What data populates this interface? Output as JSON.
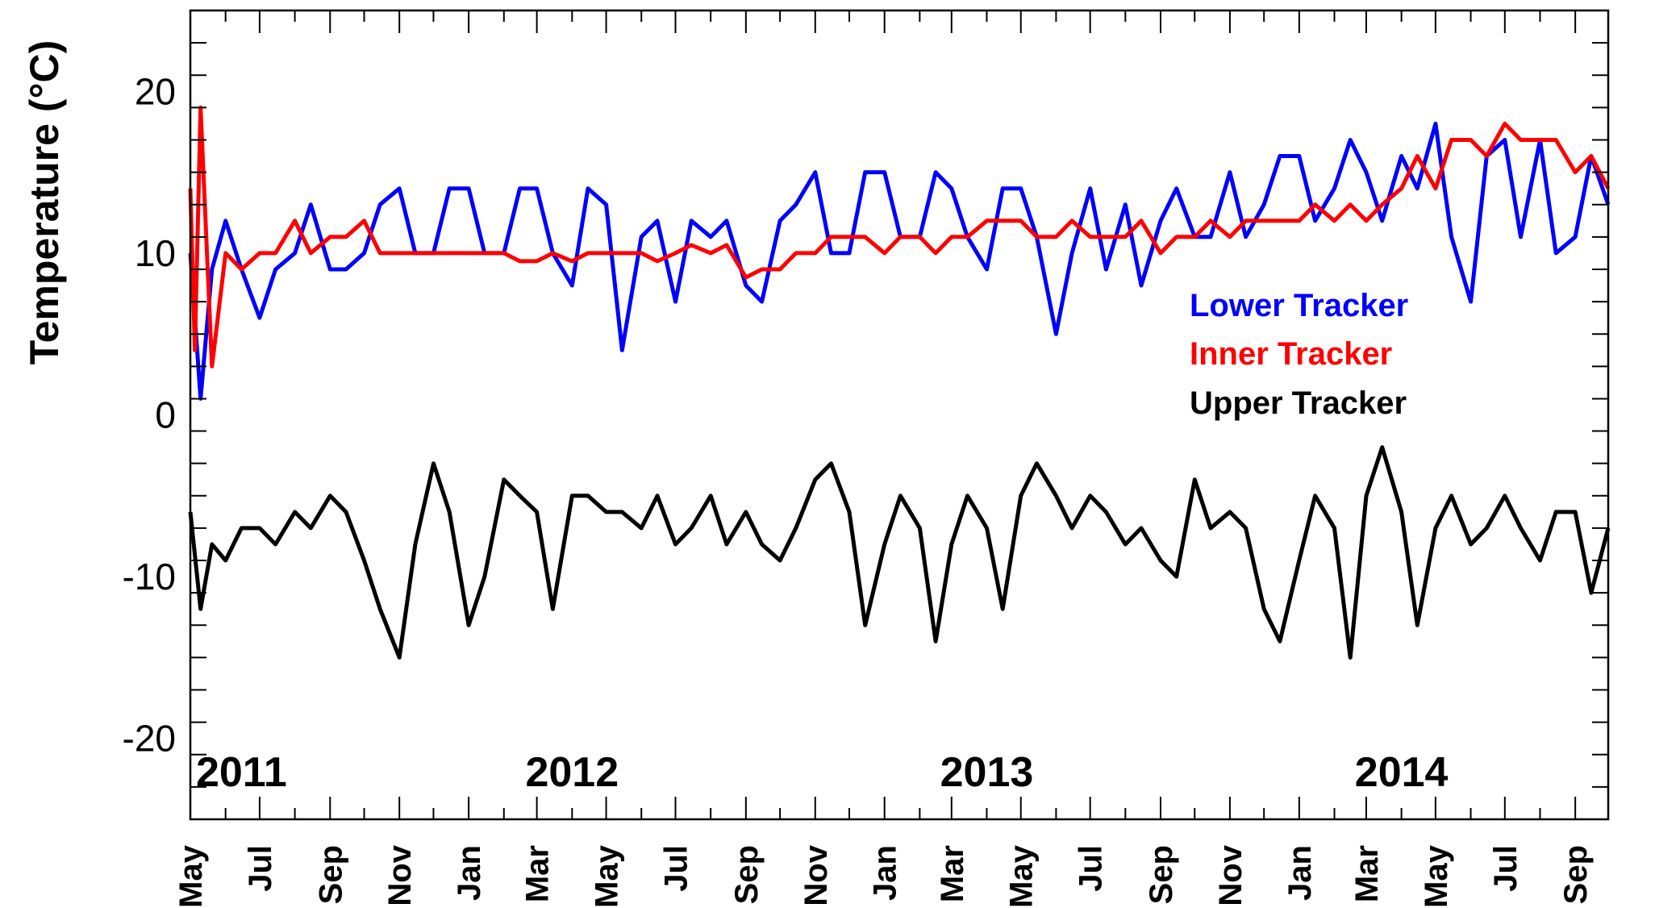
{
  "chart_data": {
    "type": "line",
    "ylabel": "Temperature (°C)",
    "xlabel": "",
    "ylim": [
      -25,
      25
    ],
    "yticks": [
      -20,
      -10,
      0,
      10,
      20
    ],
    "x_range": [
      "2011-05-01",
      "2014-09-30"
    ],
    "x_month_labels": [
      "May",
      "Jul",
      "Sep",
      "Nov",
      "Jan",
      "Mar",
      "May",
      "Jul",
      "Sep",
      "Nov",
      "Jan",
      "Mar",
      "May",
      "Jul",
      "Sep",
      "Nov",
      "Jan",
      "Mar",
      "May",
      "Jul",
      "Sep"
    ],
    "x_month_dates": [
      "2011-05-01",
      "2011-07-01",
      "2011-09-01",
      "2011-11-01",
      "2012-01-01",
      "2012-03-01",
      "2012-05-01",
      "2012-07-01",
      "2012-09-01",
      "2012-11-01",
      "2013-01-01",
      "2013-03-01",
      "2013-05-01",
      "2013-07-01",
      "2013-09-01",
      "2013-11-01",
      "2014-01-01",
      "2014-03-01",
      "2014-05-01",
      "2014-07-01",
      "2014-09-01"
    ],
    "year_annotations": [
      {
        "label": "2011",
        "date": "2011-06-15"
      },
      {
        "label": "2012",
        "date": "2012-04-01"
      },
      {
        "label": "2013",
        "date": "2013-04-01"
      },
      {
        "label": "2014",
        "date": "2014-04-01"
      }
    ],
    "legend_position": "right-middle",
    "grid": false,
    "series": [
      {
        "name": "Lower Tracker",
        "color": "#0000ff",
        "x": [
          "2011-05-01",
          "2011-05-10",
          "2011-05-20",
          "2011-06-01",
          "2011-06-15",
          "2011-07-01",
          "2011-07-15",
          "2011-08-01",
          "2011-08-15",
          "2011-09-01",
          "2011-09-15",
          "2011-10-01",
          "2011-10-15",
          "2011-11-01",
          "2011-11-15",
          "2011-12-01",
          "2011-12-15",
          "2012-01-01",
          "2012-01-15",
          "2012-02-01",
          "2012-02-15",
          "2012-03-01",
          "2012-03-15",
          "2012-04-01",
          "2012-04-15",
          "2012-05-01",
          "2012-05-15",
          "2012-06-01",
          "2012-06-15",
          "2012-07-01",
          "2012-07-15",
          "2012-08-01",
          "2012-08-15",
          "2012-09-01",
          "2012-09-15",
          "2012-10-01",
          "2012-10-15",
          "2012-11-01",
          "2012-11-15",
          "2012-12-01",
          "2012-12-15",
          "2013-01-01",
          "2013-01-15",
          "2013-02-01",
          "2013-02-15",
          "2013-03-01",
          "2013-03-15",
          "2013-04-01",
          "2013-04-15",
          "2013-05-01",
          "2013-05-15",
          "2013-06-01",
          "2013-06-15",
          "2013-07-01",
          "2013-07-15",
          "2013-08-01",
          "2013-08-15",
          "2013-09-01",
          "2013-09-15",
          "2013-10-01",
          "2013-10-15",
          "2013-11-01",
          "2013-11-15",
          "2013-12-01",
          "2013-12-15",
          "2014-01-01",
          "2014-01-15",
          "2014-02-01",
          "2014-02-15",
          "2014-03-01",
          "2014-03-15",
          "2014-04-01",
          "2014-04-15",
          "2014-05-01",
          "2014-05-15",
          "2014-06-01",
          "2014-06-15",
          "2014-07-01",
          "2014-07-15",
          "2014-08-01",
          "2014-08-15",
          "2014-09-01",
          "2014-09-15",
          "2014-09-30"
        ],
        "y": [
          10,
          1,
          9,
          12,
          9,
          6,
          9,
          10,
          13,
          9,
          9,
          10,
          13,
          14,
          10,
          10,
          14,
          14,
          10,
          10,
          14,
          14,
          10,
          8,
          14,
          13,
          4,
          11,
          12,
          7,
          12,
          11,
          12,
          8,
          7,
          12,
          13,
          15,
          10,
          10,
          15,
          15,
          11,
          11,
          15,
          14,
          11,
          9,
          14,
          14,
          11,
          5,
          10,
          14,
          9,
          13,
          8,
          12,
          14,
          11,
          11,
          15,
          11,
          13,
          16,
          16,
          12,
          14,
          17,
          15,
          12,
          16,
          14,
          18,
          11,
          7,
          16,
          17,
          11,
          17,
          10,
          11,
          16,
          13
        ]
      },
      {
        "name": "Inner Tracker",
        "color": "#ff0000",
        "x": [
          "2011-05-01",
          "2011-05-05",
          "2011-05-10",
          "2011-05-20",
          "2011-06-01",
          "2011-06-15",
          "2011-07-01",
          "2011-07-15",
          "2011-08-01",
          "2011-08-15",
          "2011-09-01",
          "2011-09-15",
          "2011-10-01",
          "2011-10-15",
          "2011-11-01",
          "2011-11-15",
          "2011-12-01",
          "2011-12-15",
          "2012-01-01",
          "2012-01-15",
          "2012-02-01",
          "2012-02-15",
          "2012-03-01",
          "2012-03-15",
          "2012-04-01",
          "2012-04-15",
          "2012-05-01",
          "2012-05-15",
          "2012-06-01",
          "2012-06-15",
          "2012-07-01",
          "2012-07-15",
          "2012-08-01",
          "2012-08-15",
          "2012-09-01",
          "2012-09-15",
          "2012-10-01",
          "2012-10-15",
          "2012-11-01",
          "2012-11-15",
          "2012-12-01",
          "2012-12-15",
          "2013-01-01",
          "2013-01-15",
          "2013-02-01",
          "2013-02-15",
          "2013-03-01",
          "2013-03-15",
          "2013-04-01",
          "2013-04-15",
          "2013-05-01",
          "2013-05-15",
          "2013-06-01",
          "2013-06-15",
          "2013-07-01",
          "2013-07-15",
          "2013-08-01",
          "2013-08-15",
          "2013-09-01",
          "2013-09-15",
          "2013-10-01",
          "2013-10-15",
          "2013-11-01",
          "2013-11-15",
          "2013-12-01",
          "2013-12-15",
          "2014-01-01",
          "2014-01-15",
          "2014-02-01",
          "2014-02-15",
          "2014-03-01",
          "2014-03-15",
          "2014-04-01",
          "2014-04-15",
          "2014-05-01",
          "2014-05-15",
          "2014-06-01",
          "2014-06-15",
          "2014-07-01",
          "2014-07-15",
          "2014-08-01",
          "2014-08-15",
          "2014-09-01",
          "2014-09-15",
          "2014-09-30"
        ],
        "y": [
          14,
          4,
          19,
          3,
          10,
          9,
          10,
          10,
          12,
          10,
          11,
          11,
          12,
          10,
          10,
          10,
          10,
          10,
          10,
          10,
          10,
          9.5,
          9.5,
          10,
          9.5,
          10,
          10,
          10,
          10,
          9.5,
          10,
          10.5,
          10,
          10.5,
          8.5,
          9,
          9,
          10,
          10,
          11,
          11,
          11,
          10,
          11,
          11,
          10,
          11,
          11,
          12,
          12,
          12,
          11,
          11,
          12,
          11,
          11,
          11,
          12,
          10,
          11,
          11,
          12,
          11,
          12,
          12,
          12,
          12,
          13,
          12,
          13,
          12,
          13,
          14,
          16,
          14,
          17,
          17,
          16,
          18,
          17,
          17,
          17,
          15,
          16,
          14
        ]
      },
      {
        "name": "Upper Tracker",
        "color": "#000000",
        "x": [
          "2011-05-01",
          "2011-05-10",
          "2011-05-20",
          "2011-06-01",
          "2011-06-15",
          "2011-07-01",
          "2011-07-15",
          "2011-08-01",
          "2011-08-15",
          "2011-09-01",
          "2011-09-15",
          "2011-10-01",
          "2011-10-15",
          "2011-11-01",
          "2011-11-15",
          "2011-12-01",
          "2011-12-15",
          "2012-01-01",
          "2012-01-15",
          "2012-02-01",
          "2012-02-15",
          "2012-03-01",
          "2012-03-15",
          "2012-04-01",
          "2012-04-15",
          "2012-05-01",
          "2012-05-15",
          "2012-06-01",
          "2012-06-15",
          "2012-07-01",
          "2012-07-15",
          "2012-08-01",
          "2012-08-15",
          "2012-09-01",
          "2012-09-15",
          "2012-10-01",
          "2012-10-15",
          "2012-11-01",
          "2012-11-15",
          "2012-12-01",
          "2012-12-15",
          "2013-01-01",
          "2013-01-15",
          "2013-02-01",
          "2013-02-15",
          "2013-03-01",
          "2013-03-15",
          "2013-04-01",
          "2013-04-15",
          "2013-05-01",
          "2013-05-15",
          "2013-06-01",
          "2013-06-15",
          "2013-07-01",
          "2013-07-15",
          "2013-08-01",
          "2013-08-15",
          "2013-09-01",
          "2013-09-15",
          "2013-10-01",
          "2013-10-15",
          "2013-11-01",
          "2013-11-15",
          "2013-12-01",
          "2013-12-15",
          "2014-01-01",
          "2014-01-15",
          "2014-02-01",
          "2014-02-15",
          "2014-03-01",
          "2014-03-15",
          "2014-04-01",
          "2014-04-15",
          "2014-05-01",
          "2014-05-15",
          "2014-06-01",
          "2014-06-15",
          "2014-07-01",
          "2014-07-15",
          "2014-08-01",
          "2014-08-15",
          "2014-09-01",
          "2014-09-15",
          "2014-09-30"
        ],
        "y": [
          -6,
          -12,
          -8,
          -9,
          -7,
          -7,
          -8,
          -6,
          -7,
          -5,
          -6,
          -9,
          -12,
          -15,
          -8,
          -3,
          -6,
          -13,
          -10,
          -4,
          -5,
          -6,
          -12,
          -5,
          -5,
          -6,
          -6,
          -7,
          -5,
          -8,
          -7,
          -5,
          -8,
          -6,
          -8,
          -9,
          -7,
          -4,
          -3,
          -6,
          -13,
          -8,
          -5,
          -7,
          -14,
          -8,
          -5,
          -7,
          -12,
          -5,
          -3,
          -5,
          -7,
          -5,
          -6,
          -8,
          -7,
          -9,
          -10,
          -4,
          -7,
          -6,
          -7,
          -12,
          -14,
          -9,
          -5,
          -7,
          -15,
          -5,
          -2,
          -6,
          -13,
          -7,
          -5,
          -8,
          -7,
          -5,
          -7,
          -9,
          -6,
          -6,
          -11,
          -7
        ]
      }
    ]
  }
}
